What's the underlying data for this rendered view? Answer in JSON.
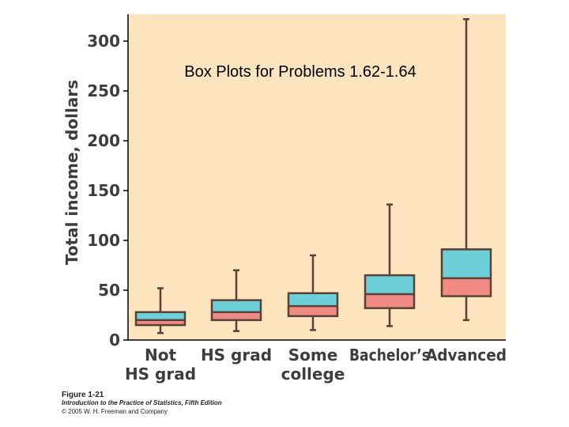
{
  "slide_title": "Box Plots for Problems 1.62-1.64",
  "caption": {
    "figure": "Figure 1-21",
    "book": "Introduction to the Practice of Statistics, Fifth Edition",
    "copyright": "© 2005 W. H. Freeman and Company"
  },
  "colors": {
    "plot_background": "#fce5be",
    "upper_box": "#6dcfd8",
    "lower_box": "#f08a85",
    "whisker": "#5a4035",
    "text": "#3d3d3d"
  },
  "chart_data": {
    "type": "box",
    "ylabel": "Total income, dollars",
    "ylim": [
      0,
      330
    ],
    "yticks": [
      0,
      50,
      100,
      150,
      200,
      250,
      300
    ],
    "categories": [
      {
        "line1": "Not",
        "line2": "HS grad",
        "min": 7,
        "q1": 15,
        "median": 20,
        "q3": 28,
        "max": 52
      },
      {
        "line1": "HS grad",
        "line2": "",
        "min": 9,
        "q1": 20,
        "median": 28,
        "q3": 40,
        "max": 70
      },
      {
        "line1": "Some",
        "line2": "college",
        "min": 10,
        "q1": 24,
        "median": 34,
        "q3": 47,
        "max": 85
      },
      {
        "line1": "Bachelor’s",
        "line2": "",
        "min": 14,
        "q1": 32,
        "median": 46,
        "q3": 65,
        "max": 136
      },
      {
        "line1": "Advanced",
        "line2": "",
        "min": 20,
        "q1": 44,
        "median": 62,
        "q3": 91,
        "max": 322
      }
    ]
  }
}
